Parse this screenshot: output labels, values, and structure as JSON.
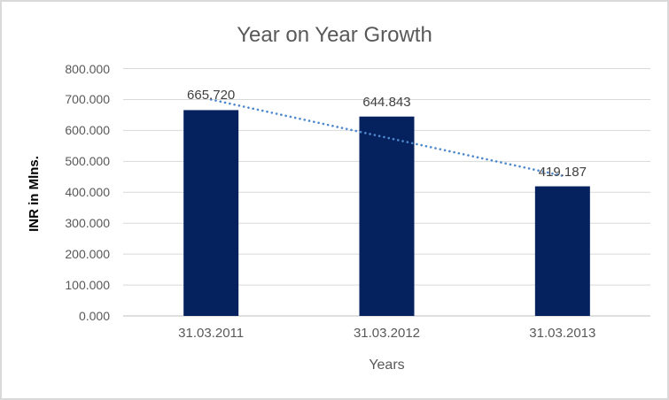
{
  "chart_data": {
    "type": "bar",
    "title": "Year on Year Growth",
    "xlabel": "Years",
    "ylabel": "INR in Mlns.",
    "categories": [
      "31.03.2011",
      "31.03.2012",
      "31.03.2013"
    ],
    "series": [
      {
        "name": "INR in Mlns.",
        "values": [
          665.72,
          644.843,
          419.187
        ]
      }
    ],
    "data_labels": [
      "665.720",
      "644.843",
      "419.187"
    ],
    "ylim": [
      0,
      800
    ],
    "y_ticks": {
      "values": [
        0,
        100,
        200,
        300,
        400,
        500,
        600,
        700,
        800
      ],
      "labels": [
        "0.000",
        "100.000",
        "200.000",
        "300.000",
        "400.000",
        "500.000",
        "600.000",
        "700.000",
        "800.000"
      ]
    },
    "grid": true,
    "legend": "none",
    "trendline": {
      "type": "linear",
      "style": "dotted"
    },
    "colors": {
      "bar": "#05225F",
      "gridline": "#D9D9D9",
      "axis_line": "#BFBFBF",
      "trendline": "#4E88CD",
      "title": "#595959",
      "axis_text": "#595959",
      "data_label": "#404040",
      "axis_title": "#000000",
      "background": "#FFFFFF",
      "border": "#D9D9D9"
    }
  }
}
